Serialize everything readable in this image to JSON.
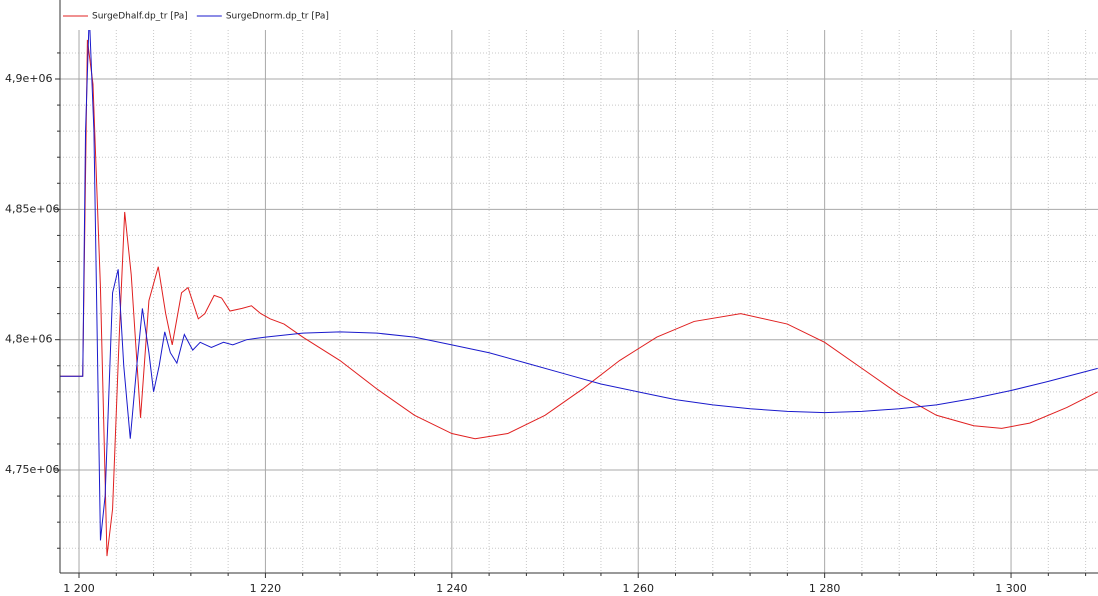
{
  "chart_data": {
    "type": "line",
    "xlim": [
      1197.96,
      1309.33
    ],
    "ylim": [
      4710500,
      4918800
    ],
    "xticks": [
      {
        "value": 1200,
        "label": "1 200"
      },
      {
        "value": 1220,
        "label": "1 220"
      },
      {
        "value": 1240,
        "label": "1 240"
      },
      {
        "value": 1260,
        "label": "1 260"
      },
      {
        "value": 1280,
        "label": "1 280"
      },
      {
        "value": 1300,
        "label": "1 300"
      }
    ],
    "yticks": [
      {
        "value": 4750000,
        "label": "4,75e+06"
      },
      {
        "value": 4800000,
        "label": "4,8e+06"
      },
      {
        "value": 4850000,
        "label": "4,85e+06"
      },
      {
        "value": 4900000,
        "label": "4,9e+06"
      }
    ],
    "xminorticks": [
      1204,
      1208,
      1212,
      1216,
      1224,
      1228,
      1232,
      1236,
      1244,
      1248,
      1252,
      1256,
      1264,
      1268,
      1272,
      1276,
      1284,
      1288,
      1292,
      1296,
      1304,
      1308
    ],
    "yminorticks": [
      4720000,
      4730000,
      4740000,
      4760000,
      4770000,
      4780000,
      4790000,
      4810000,
      4820000,
      4830000,
      4840000,
      4860000,
      4870000,
      4880000,
      4890000,
      4910000
    ],
    "grid": true,
    "legend": "top-left",
    "series": [
      {
        "name": "SurgeDhalf.dp_tr [Pa]",
        "color": "#e02020",
        "x": [
          1198,
          1200,
          1200.4,
          1200.9,
          1201.5,
          1202.3,
          1203,
          1203.6,
          1204.3,
          1204.9,
          1205.6,
          1206.6,
          1207.5,
          1208.5,
          1209.3,
          1210,
          1211,
          1211.7,
          1212.8,
          1213.5,
          1214.5,
          1215.3,
          1216.2,
          1217.5,
          1218.5,
          1219.5,
          1220.5,
          1222,
          1224,
          1228,
          1232,
          1236,
          1240,
          1242.5,
          1246,
          1250,
          1254,
          1258,
          1262,
          1266,
          1271,
          1276,
          1280,
          1284,
          1288,
          1292,
          1296,
          1299,
          1302,
          1306,
          1309.3
        ],
        "values": [
          4786000,
          4786000,
          4786000,
          4915000,
          4898000,
          4820000,
          4717000,
          4735000,
          4800000,
          4849000,
          4825000,
          4770000,
          4815000,
          4828000,
          4810000,
          4798000,
          4818000,
          4820000,
          4808000,
          4810000,
          4817000,
          4816000,
          4811000,
          4812000,
          4813000,
          4810000,
          4808000,
          4806000,
          4801000,
          4792000,
          4781000,
          4771000,
          4764000,
          4762000,
          4764000,
          4771000,
          4781000,
          4792000,
          4801000,
          4807000,
          4810000,
          4806000,
          4799000,
          4789000,
          4779000,
          4771000,
          4767000,
          4766000,
          4768000,
          4774000,
          4780000
        ]
      },
      {
        "name": "SurgeDnorm.dp_tr [Pa]",
        "color": "#1a1acc",
        "x": [
          1198,
          1200.4,
          1200.7,
          1201.1,
          1201.6,
          1202.3,
          1202.8,
          1203.6,
          1204.2,
          1204.8,
          1205.5,
          1206.2,
          1206.8,
          1207.5,
          1208,
          1208.6,
          1209.2,
          1209.8,
          1210.5,
          1211.3,
          1212.2,
          1213,
          1214.2,
          1215.5,
          1216.5,
          1218,
          1220,
          1224,
          1228,
          1232,
          1236,
          1240,
          1244,
          1248,
          1252,
          1256,
          1260,
          1264,
          1268,
          1272,
          1276,
          1280,
          1284,
          1288,
          1292,
          1296,
          1300,
          1304,
          1309.3
        ],
        "values": [
          4786000,
          4786000,
          4880000,
          4925000,
          4880000,
          4723000,
          4740000,
          4818000,
          4827000,
          4790000,
          4762000,
          4790000,
          4812000,
          4795000,
          4780000,
          4790000,
          4803000,
          4795000,
          4791000,
          4802000,
          4796000,
          4799000,
          4797000,
          4799000,
          4798000,
          4800000,
          4801000,
          4802500,
          4803000,
          4802500,
          4801000,
          4798000,
          4795000,
          4791000,
          4787000,
          4783000,
          4780000,
          4777000,
          4775000,
          4773500,
          4772500,
          4772000,
          4772500,
          4773500,
          4775000,
          4777500,
          4780500,
          4784000,
          4789000
        ]
      }
    ]
  }
}
